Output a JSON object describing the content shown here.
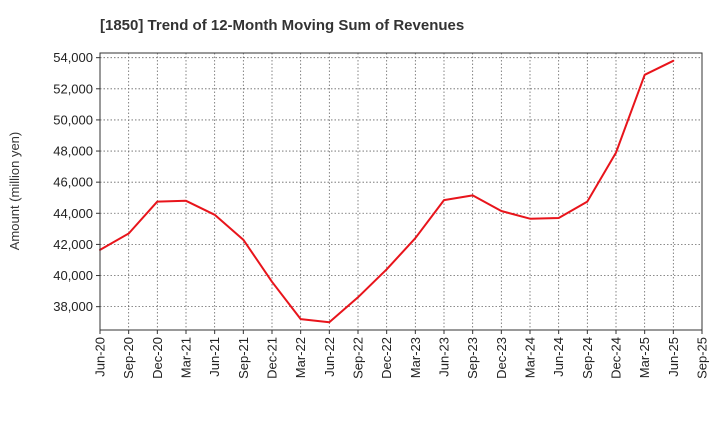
{
  "chart_data": {
    "type": "line",
    "title": "[1850]  Trend of 12-Month Moving Sum of Revenues",
    "xlabel": "",
    "ylabel": "Amount (million yen)",
    "ylim": [
      36500,
      54300
    ],
    "yticks": [
      38000,
      40000,
      42000,
      44000,
      46000,
      48000,
      50000,
      52000,
      54000
    ],
    "ytick_labels": [
      "38,000",
      "40,000",
      "42,000",
      "44,000",
      "46,000",
      "48,000",
      "50,000",
      "52,000",
      "54,000"
    ],
    "categories": [
      "Jun-20",
      "Sep-20",
      "Dec-20",
      "Mar-21",
      "Jun-21",
      "Sep-21",
      "Dec-21",
      "Mar-22",
      "Jun-22",
      "Sep-22",
      "Dec-22",
      "Mar-23",
      "Jun-23",
      "Sep-23",
      "Dec-23",
      "Mar-24",
      "Jun-24",
      "Sep-24",
      "Dec-24",
      "Mar-25",
      "Jun-25",
      "Sep-25"
    ],
    "series": [
      {
        "color": "#e8141b",
        "values": [
          41650,
          42700,
          44750,
          44800,
          43900,
          42300,
          39600,
          37200,
          37000,
          38600,
          40400,
          42400,
          44850,
          45150,
          44150,
          43650,
          43700,
          44750,
          47900,
          52900,
          53800,
          null
        ]
      }
    ],
    "grid": true,
    "legend": "none"
  }
}
